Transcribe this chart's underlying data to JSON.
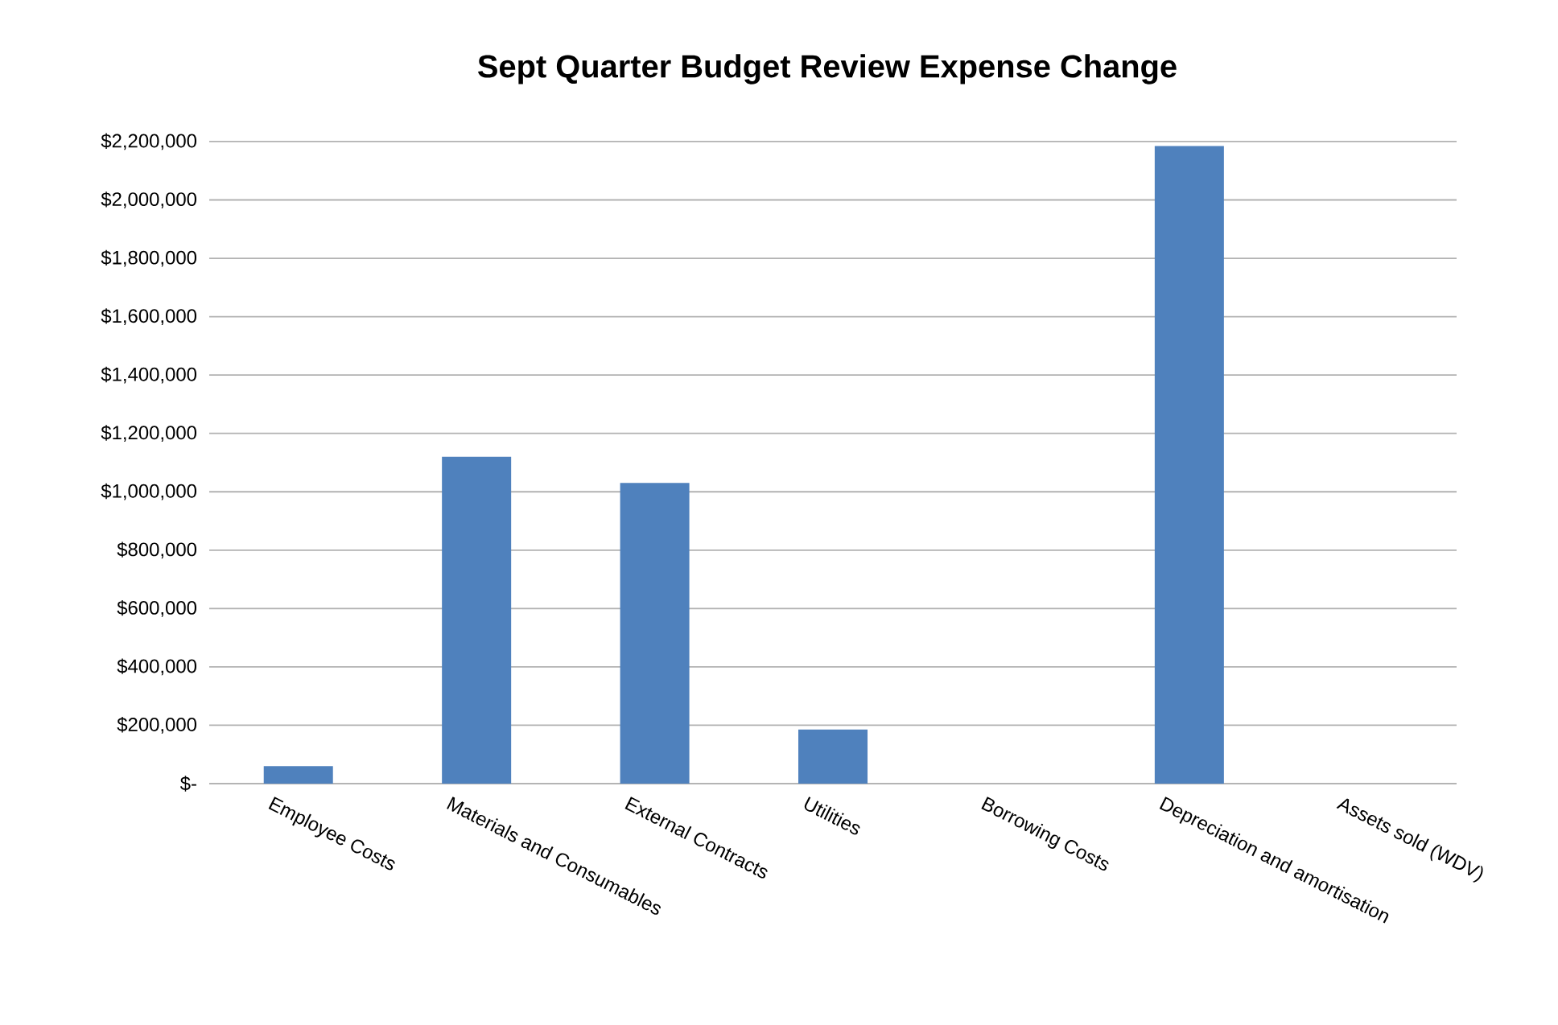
{
  "chart_data": {
    "type": "bar",
    "title": "Sept Quarter Budget Review Expense Change",
    "categories": [
      "Employee Costs",
      "Materials and Consumables",
      "External Contracts",
      "Utilities",
      "Borrowing Costs",
      "Depreciation and amortisation",
      "Assets sold (WDV)"
    ],
    "values": [
      60000,
      1120000,
      1030000,
      185000,
      0,
      2185000,
      0
    ],
    "color": "#4f81bd",
    "ylim": [
      0,
      2200000
    ],
    "yticks": [
      {
        "value": 0,
        "label": "$-"
      },
      {
        "value": 200000,
        "label": "$200,000"
      },
      {
        "value": 400000,
        "label": "$400,000"
      },
      {
        "value": 600000,
        "label": "$600,000"
      },
      {
        "value": 800000,
        "label": "$800,000"
      },
      {
        "value": 1000000,
        "label": "$1,000,000"
      },
      {
        "value": 1200000,
        "label": "$1,200,000"
      },
      {
        "value": 1400000,
        "label": "$1,400,000"
      },
      {
        "value": 1600000,
        "label": "$1,600,000"
      },
      {
        "value": 1800000,
        "label": "$1,800,000"
      },
      {
        "value": 2000000,
        "label": "$2,000,000"
      },
      {
        "value": 2200000,
        "label": "$2,200,000"
      }
    ],
    "grid": "y"
  }
}
